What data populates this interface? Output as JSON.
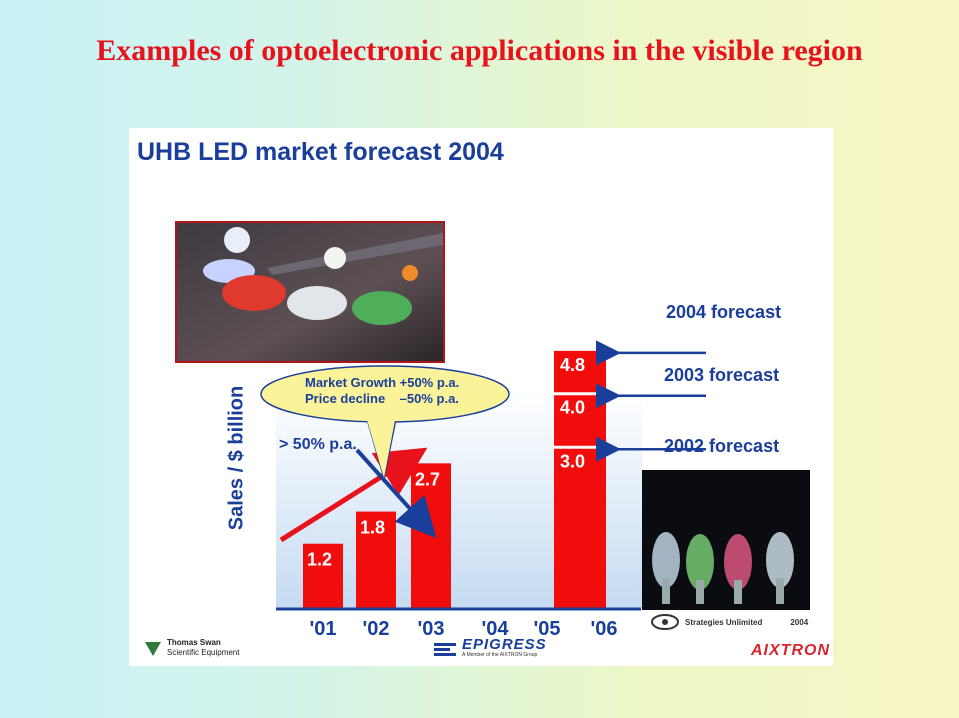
{
  "slide": {
    "title": "Examples of optoelectronic applications in the visible region"
  },
  "panel": {
    "title": "UHB LED market forecast 2004",
    "growth_bubble": [
      "Market Growth +50% p.a.",
      "Price decline    –50% p.a."
    ],
    "trend_label": "> 50% p.a.",
    "forecast_labels": [
      "2004 forecast",
      "2003 forecast",
      "2002 forecast"
    ],
    "photo_credit": "Strategies Unlimited",
    "photo_year": "2004",
    "logos": {
      "thomas_swan": [
        "Thomas Swan",
        "Scientific Equipment"
      ],
      "epigress": "EPIGRESS",
      "epigress_sub": "A Member of the AIXTRON Group",
      "aixtron": "AIXTRON"
    }
  },
  "colors": {
    "title_red": "#e8121c",
    "navy": "#1a3f9a",
    "bar_red": "#f20d0d",
    "panel_bg": "#ffffff"
  },
  "chart_data": {
    "type": "bar",
    "ylabel": "Sales / $ billion",
    "categories": [
      "'01",
      "'02",
      "'03",
      "'04",
      "'05",
      "'06"
    ],
    "values": [
      1.2,
      1.8,
      2.7,
      null,
      null,
      4.8
    ],
    "stacked_2006": [
      3.0,
      4.0,
      4.8
    ],
    "ylim": [
      0,
      5.6
    ],
    "grid": false
  }
}
